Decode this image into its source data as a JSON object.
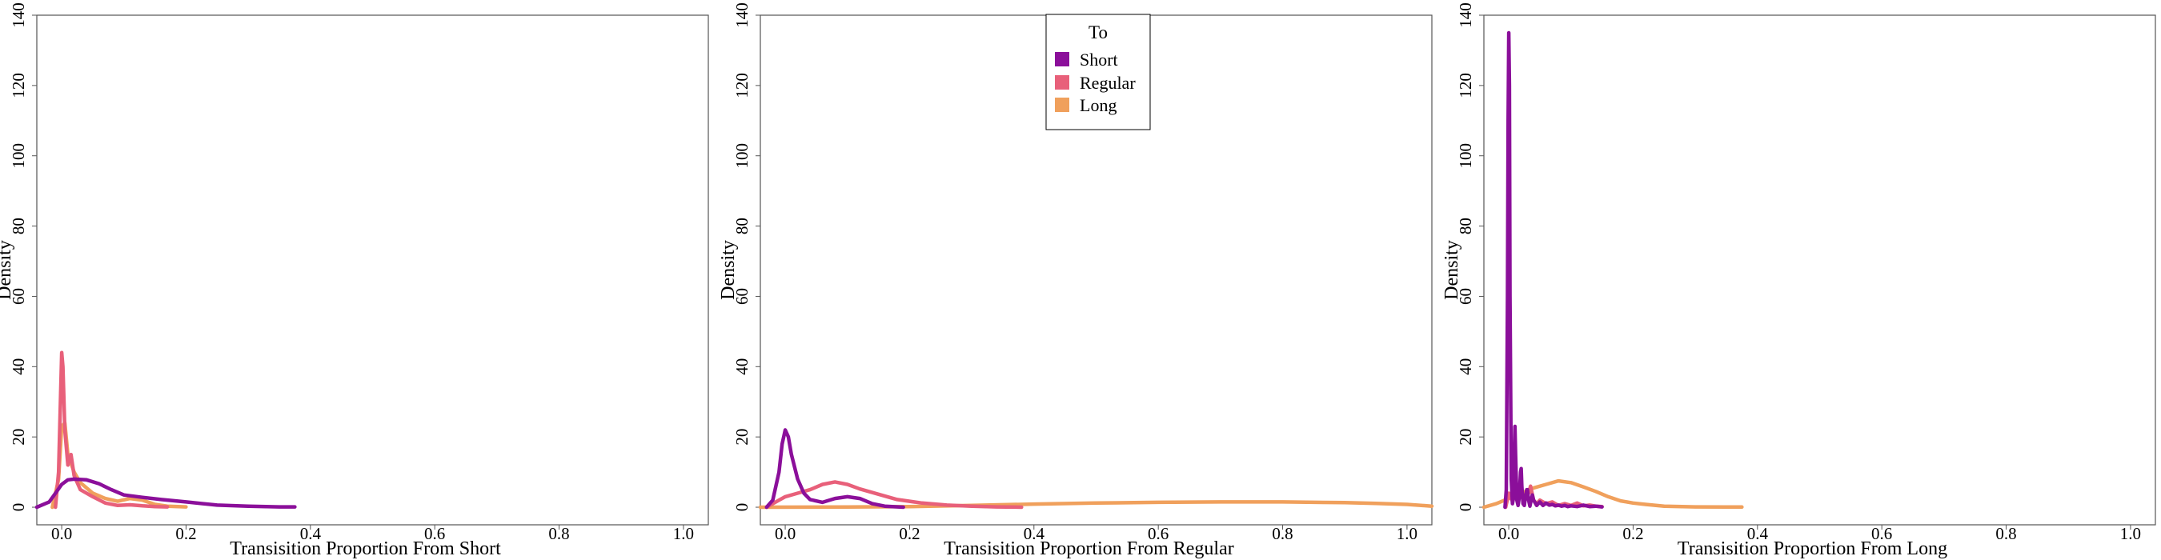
{
  "figure": {
    "legend": {
      "title": "To",
      "placement": "top-center of middle panel",
      "entries": [
        {
          "label": "Short",
          "color": "#8B0F9A"
        },
        {
          "label": "Regular",
          "color": "#E8607A"
        },
        {
          "label": "Long",
          "color": "#F0A05C"
        }
      ]
    }
  },
  "chart_data": [
    {
      "type": "line",
      "xlabel": "Transisition Proportion From Short",
      "ylabel": "Density",
      "xlim": [
        -0.04,
        1.04
      ],
      "ylim": [
        -5,
        140
      ],
      "xticks": [
        0.0,
        0.2,
        0.4,
        0.6,
        0.8,
        1.0
      ],
      "xtick_labels": [
        "0.0",
        "0.2",
        "0.4",
        "0.6",
        "0.8",
        "1.0"
      ],
      "yticks": [
        0,
        20,
        40,
        60,
        80,
        100,
        120,
        140
      ],
      "ytick_labels": [
        "0",
        "20",
        "40",
        "60",
        "80",
        "100",
        "120",
        "140"
      ],
      "grid": false,
      "series": [
        {
          "name": "Short",
          "color": "#8B0F9A",
          "x": [
            -0.04,
            -0.02,
            -0.01,
            0.0,
            0.01,
            0.02,
            0.04,
            0.06,
            0.08,
            0.1,
            0.13,
            0.16,
            0.2,
            0.25,
            0.3,
            0.35,
            0.375
          ],
          "y": [
            0,
            1.5,
            4,
            6.5,
            7.8,
            8,
            7.8,
            6.7,
            5,
            3.5,
            2.8,
            2.2,
            1.5,
            0.6,
            0.3,
            0.1,
            0.1
          ]
        },
        {
          "name": "Regular",
          "color": "#E8607A",
          "x": [
            -0.01,
            -0.005,
            -0.002,
            0.0,
            0.002,
            0.005,
            0.01,
            0.015,
            0.02,
            0.03,
            0.05,
            0.07,
            0.09,
            0.11,
            0.13,
            0.15,
            0.17
          ],
          "y": [
            0,
            10,
            30,
            44,
            40,
            22,
            12,
            15,
            9,
            5,
            3,
            1.2,
            0.5,
            0.7,
            0.4,
            0.2,
            0.1
          ]
        },
        {
          "name": "Long",
          "color": "#F0A05C",
          "x": [
            -0.015,
            -0.005,
            0.0,
            0.005,
            0.01,
            0.02,
            0.03,
            0.05,
            0.07,
            0.09,
            0.11,
            0.13,
            0.15,
            0.17,
            0.2
          ],
          "y": [
            0,
            8,
            23,
            24,
            15,
            10,
            7,
            4,
            2.5,
            1.7,
            2.5,
            2,
            0.8,
            0.3,
            0.1
          ]
        }
      ]
    },
    {
      "type": "line",
      "xlabel": "Transisition Proportion From Regular",
      "ylabel": "Density",
      "xlim": [
        -0.04,
        1.04
      ],
      "ylim": [
        -5,
        140
      ],
      "xticks": [
        0.0,
        0.2,
        0.4,
        0.6,
        0.8,
        1.0
      ],
      "xtick_labels": [
        "0.0",
        "0.2",
        "0.4",
        "0.6",
        "0.8",
        "1.0"
      ],
      "yticks": [
        0,
        20,
        40,
        60,
        80,
        100,
        120,
        140
      ],
      "ytick_labels": [
        "0",
        "20",
        "40",
        "60",
        "80",
        "100",
        "120",
        "140"
      ],
      "grid": false,
      "series": [
        {
          "name": "Short",
          "color": "#8B0F9A",
          "x": [
            -0.03,
            -0.02,
            -0.01,
            -0.005,
            0.0,
            0.005,
            0.01,
            0.02,
            0.03,
            0.04,
            0.06,
            0.08,
            0.1,
            0.12,
            0.14,
            0.16,
            0.19
          ],
          "y": [
            0,
            2,
            10,
            18,
            22,
            20,
            15,
            8,
            4,
            2.2,
            1.4,
            2.5,
            3,
            2.5,
            1,
            0.3,
            0
          ]
        },
        {
          "name": "Regular",
          "color": "#E8607A",
          "x": [
            -0.03,
            -0.01,
            0.0,
            0.02,
            0.04,
            0.06,
            0.08,
            0.1,
            0.12,
            0.15,
            0.18,
            0.22,
            0.26,
            0.3,
            0.34,
            0.38
          ],
          "y": [
            0,
            2,
            3,
            4,
            5,
            6.5,
            7.2,
            6.5,
            5.2,
            3.7,
            2.2,
            1.2,
            0.6,
            0.3,
            0.1,
            0
          ]
        },
        {
          "name": "Long",
          "color": "#F0A05C",
          "x": [
            -0.04,
            0.1,
            0.2,
            0.3,
            0.4,
            0.5,
            0.6,
            0.7,
            0.8,
            0.9,
            0.95,
            1.0,
            1.04
          ],
          "y": [
            0,
            0.05,
            0.2,
            0.5,
            0.9,
            1.2,
            1.4,
            1.5,
            1.5,
            1.3,
            1.1,
            0.8,
            0.3
          ]
        }
      ]
    },
    {
      "type": "line",
      "xlabel": "Transisition Proportion From Long",
      "ylabel": "Density",
      "xlim": [
        -0.04,
        1.04
      ],
      "ylim": [
        -5,
        140
      ],
      "xticks": [
        0.0,
        0.2,
        0.4,
        0.6,
        0.8,
        1.0
      ],
      "xtick_labels": [
        "0.0",
        "0.2",
        "0.4",
        "0.6",
        "0.8",
        "1.0"
      ],
      "yticks": [
        0,
        20,
        40,
        60,
        80,
        100,
        120,
        140
      ],
      "ytick_labels": [
        "0",
        "20",
        "40",
        "60",
        "80",
        "100",
        "120",
        "140"
      ],
      "grid": false,
      "series": [
        {
          "name": "Short",
          "color": "#8B0F9A",
          "x": [
            -0.006,
            -0.004,
            -0.002,
            -0.001,
            0.0,
            0.001,
            0.002,
            0.004,
            0.006,
            0.008,
            0.009,
            0.01,
            0.011,
            0.013,
            0.015,
            0.017,
            0.019,
            0.02,
            0.021,
            0.023,
            0.025,
            0.027,
            0.029,
            0.03,
            0.032,
            0.034,
            0.036,
            0.038,
            0.04,
            0.045,
            0.05,
            0.055,
            0.06,
            0.065,
            0.07,
            0.075,
            0.08,
            0.085,
            0.09,
            0.095,
            0.1,
            0.11,
            0.12,
            0.13,
            0.14,
            0.15
          ],
          "y": [
            0,
            5,
            60,
            110,
            135,
            120,
            60,
            8,
            1,
            3,
            15,
            23,
            15,
            2,
            0.5,
            3,
            10,
            11,
            6,
            1,
            0.5,
            3,
            5,
            5,
            2,
            0.3,
            2,
            3.5,
            2,
            0.5,
            1.5,
            0.5,
            1.2,
            0.6,
            0.8,
            0.4,
            0.6,
            0.3,
            0.5,
            0.2,
            0.4,
            0.2,
            0.6,
            0.2,
            0.3,
            0.1
          ]
        },
        {
          "name": "Regular",
          "color": "#E8607A",
          "x": [
            -0.005,
            0.0,
            0.005,
            0.01,
            0.015,
            0.02,
            0.025,
            0.03,
            0.035,
            0.04,
            0.045,
            0.05,
            0.06,
            0.07,
            0.08,
            0.09,
            0.1,
            0.11,
            0.12,
            0.13,
            0.14,
            0.15
          ],
          "y": [
            0,
            4,
            2,
            5,
            3,
            4,
            2,
            3,
            6,
            2,
            1,
            2,
            1,
            1.5,
            0.5,
            1,
            0.5,
            1.2,
            0.4,
            0.6,
            0.3,
            0.2
          ]
        },
        {
          "name": "Long",
          "color": "#F0A05C",
          "x": [
            -0.04,
            -0.02,
            0.0,
            0.02,
            0.04,
            0.06,
            0.08,
            0.1,
            0.12,
            0.14,
            0.16,
            0.18,
            0.2,
            0.22,
            0.25,
            0.3,
            0.35,
            0.375
          ],
          "y": [
            0,
            1,
            2.5,
            4,
            5.5,
            6.5,
            7.5,
            7,
            5.8,
            4.5,
            3,
            1.8,
            1.2,
            0.8,
            0.3,
            0.1,
            0.05,
            0.05
          ]
        }
      ]
    }
  ]
}
